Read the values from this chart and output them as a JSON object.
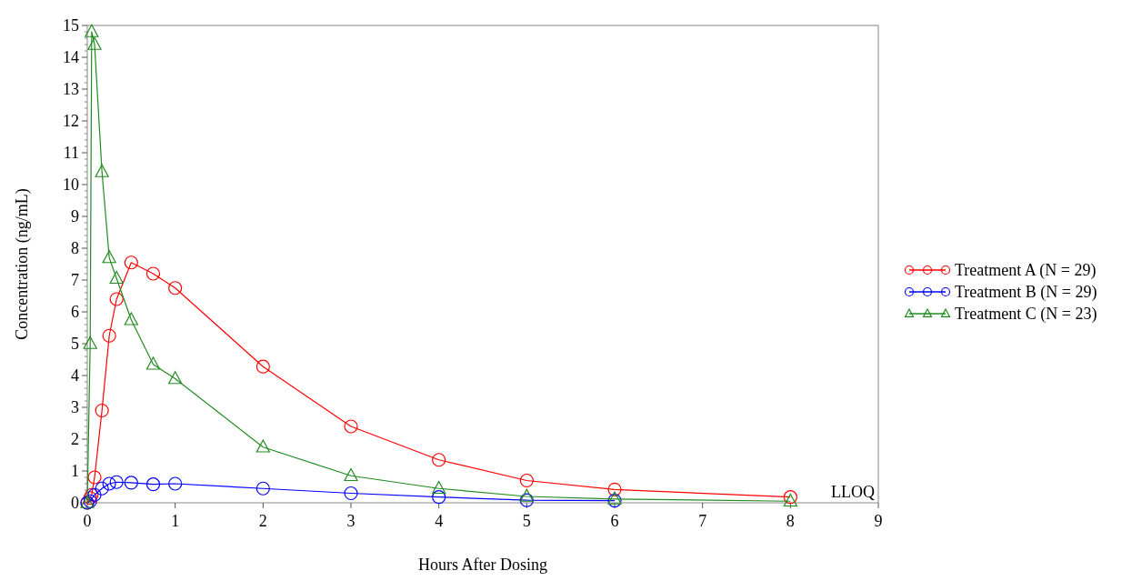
{
  "chart_data": {
    "type": "line",
    "xlabel": "Hours After Dosing",
    "ylabel": "Concentration (ng/mL)",
    "xlim": [
      0,
      9
    ],
    "xticks": [
      0,
      1,
      2,
      3,
      4,
      5,
      6,
      7,
      8,
      9
    ],
    "ylim": [
      0,
      15
    ],
    "yticks": [
      0,
      1,
      2,
      3,
      4,
      5,
      6,
      7,
      8,
      9,
      10,
      11,
      12,
      13,
      14,
      15
    ],
    "legend": "right",
    "grid": false,
    "line_style": "solid",
    "annotations": [
      "LLOQ"
    ],
    "series": [
      {
        "name": "Treatment A (N = 29)",
        "color": "#ff0000",
        "marker": "circle",
        "x": [
          0,
          0.033,
          0.05,
          0.083,
          0.167,
          0.25,
          0.333,
          0.5,
          0.75,
          1,
          2,
          3,
          4,
          5,
          6,
          8
        ],
        "values": [
          0,
          0.15,
          0.25,
          0.8,
          2.9,
          5.25,
          6.4,
          7.55,
          7.2,
          6.75,
          4.28,
          2.4,
          1.35,
          0.7,
          0.42,
          0.18
        ]
      },
      {
        "name": "Treatment B (N = 29)",
        "color": "#0000ff",
        "marker": "circle",
        "x": [
          0,
          0.033,
          0.083,
          0.167,
          0.25,
          0.333,
          0.5,
          0.75,
          1,
          2,
          3,
          4,
          5,
          6
        ],
        "values": [
          0,
          0.05,
          0.25,
          0.45,
          0.6,
          0.65,
          0.63,
          0.58,
          0.6,
          0.45,
          0.3,
          0.18,
          0.08,
          0.07
        ]
      },
      {
        "name": "Treatment C (N = 23)",
        "color": "#228b22",
        "marker": "triangle",
        "x": [
          0,
          0.033,
          0.05,
          0.083,
          0.167,
          0.25,
          0.333,
          0.5,
          0.75,
          1,
          2,
          3,
          4,
          5,
          6,
          8
        ],
        "values": [
          0,
          5.0,
          14.8,
          14.4,
          10.4,
          7.7,
          7.05,
          5.75,
          4.35,
          3.9,
          1.75,
          0.85,
          0.45,
          0.2,
          0.12,
          0.05
        ]
      }
    ]
  }
}
